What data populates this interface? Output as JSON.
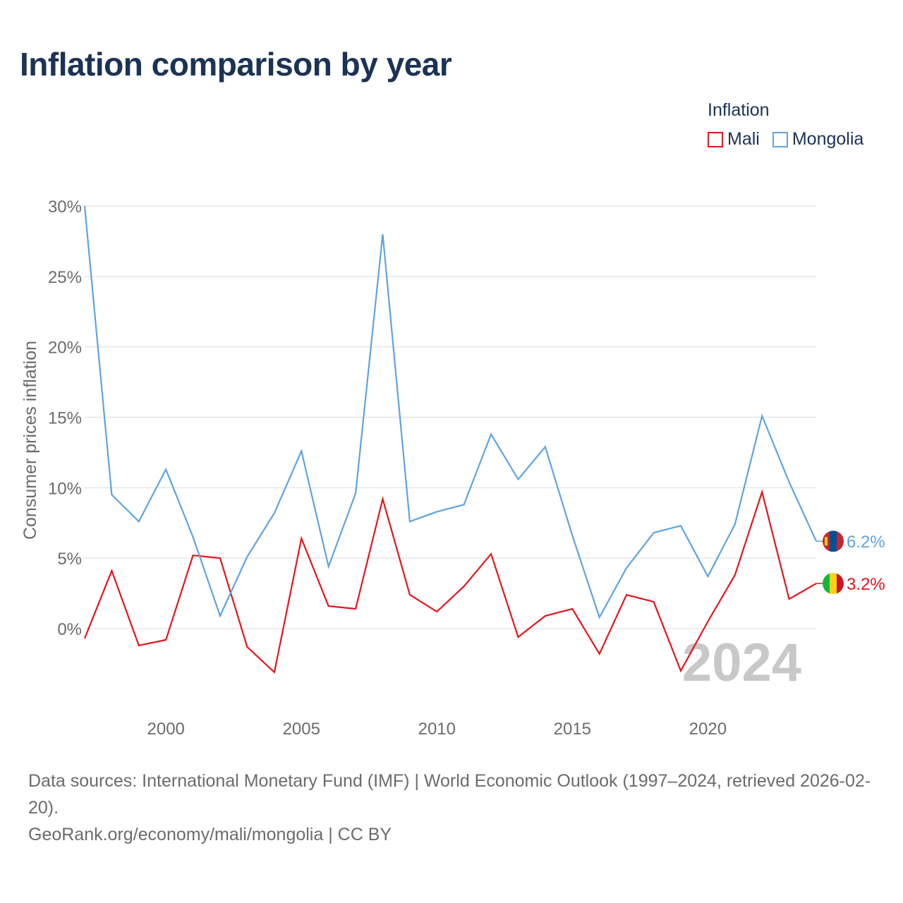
{
  "title": "Inflation comparison by year",
  "legend": {
    "title": "Inflation",
    "items": [
      {
        "label": "Mali",
        "color": "#e8141b"
      },
      {
        "label": "Mongolia",
        "color": "#5ea4e0"
      }
    ]
  },
  "chart_data": {
    "type": "line",
    "title": "Inflation comparison by year",
    "xlabel": "",
    "ylabel": "Consumer prices inflation",
    "xlim": [
      1997,
      2024
    ],
    "ylim": [
      -5,
      30
    ],
    "y_ticks": [
      0,
      5,
      10,
      15,
      20,
      25,
      30
    ],
    "y_tick_labels": [
      "0%",
      "5%",
      "10%",
      "15%",
      "20%",
      "25%",
      "30%"
    ],
    "x_ticks": [
      2000,
      2005,
      2010,
      2015,
      2020
    ],
    "x_tick_labels": [
      "2000",
      "2005",
      "2010",
      "2015",
      "2020"
    ],
    "grid": true,
    "legend_position": "top-right",
    "year_watermark": "2024",
    "x": [
      1997,
      1998,
      1999,
      2000,
      2001,
      2002,
      2003,
      2004,
      2005,
      2006,
      2007,
      2008,
      2009,
      2010,
      2011,
      2012,
      2013,
      2014,
      2015,
      2016,
      2017,
      2018,
      2019,
      2020,
      2021,
      2022,
      2023,
      2024
    ],
    "series": [
      {
        "name": "Mali",
        "color": "#e8141b",
        "end_label": "3.2%",
        "flag": "mali-flag",
        "values": [
          -0.7,
          4.1,
          -1.2,
          -0.8,
          5.2,
          5.0,
          -1.3,
          -3.1,
          6.4,
          1.6,
          1.4,
          9.2,
          2.4,
          1.2,
          3.0,
          5.3,
          -0.6,
          0.9,
          1.4,
          -1.8,
          2.4,
          1.9,
          -3.0,
          0.5,
          3.8,
          9.7,
          2.1,
          3.2
        ]
      },
      {
        "name": "Mongolia",
        "color": "#5ea4e0",
        "end_label": "6.2%",
        "flag": "mongolia-flag",
        "values": [
          30.0,
          9.5,
          7.6,
          11.3,
          6.5,
          0.9,
          5.1,
          8.2,
          12.6,
          4.4,
          9.6,
          28.0,
          7.6,
          8.3,
          8.8,
          13.8,
          10.6,
          12.9,
          6.6,
          0.8,
          4.3,
          6.8,
          7.3,
          3.7,
          7.4,
          15.1,
          10.4,
          6.2
        ]
      }
    ]
  },
  "footer": {
    "source_line": "Data sources: International Monetary Fund (IMF) | World Economic Outlook (1997–2024, retrieved 2026-02-20).",
    "credit_line": "GeoRank.org/economy/mali/mongolia | CC BY"
  }
}
